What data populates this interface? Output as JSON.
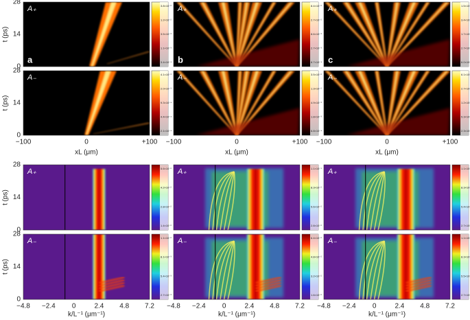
{
  "top": {
    "y_label": "t (ps)",
    "y_ticks": [
      "28",
      "14",
      "0"
    ],
    "x_label": "xL (μm)",
    "x_ticks": [
      "−100",
      "0",
      "+100"
    ],
    "panels": [
      {
        "letter": "a",
        "rows": [
          {
            "label": "A₊",
            "colorbar": [
              "3.8×10⁻²",
              "1.2×10⁻²",
              "3.5×10⁻³",
              "1.1×10⁻³",
              "3.4×10⁻⁴"
            ]
          },
          {
            "label": "A₋",
            "colorbar": [
              "4.1×10⁻³",
              "2.0×10⁻³",
              "9.3×10⁻⁴",
              "4.4×10⁻⁴",
              "2.1×10⁻⁴"
            ]
          }
        ]
      },
      {
        "letter": "b",
        "rows": [
          {
            "label": "A₊",
            "colorbar": [
              "8.4×10⁻²",
              "2.7×10⁻²",
              "8.6×10⁻³",
              "2.7×10⁻³",
              "8.7×10⁻⁴"
            ]
          },
          {
            "label": "A₋",
            "colorbar": [
              "3.5×10⁻²",
              "1.3×10⁻²",
              "4.9×10⁻³",
              "1.8×10⁻³",
              "6.8×10⁻⁴"
            ]
          }
        ]
      },
      {
        "letter": "c",
        "rows": [
          {
            "label": "A₊",
            "colorbar": [
              "1.5×10⁻¹",
              "3.4×10⁻²",
              "1.7×10⁻²",
              "2.7×10⁻³",
              "6.0×10⁻⁴"
            ]
          },
          {
            "label": "A₋",
            "colorbar": [
              "6.1×10⁻²",
              "2.7×10⁻²",
              "1.2×10⁻²",
              "5.3×10⁻³",
              "2.3×10⁻³"
            ]
          }
        ]
      }
    ]
  },
  "bottom": {
    "y_label": "t (ps)",
    "y_ticks": [
      "28",
      "14",
      "0"
    ],
    "x_label": "k/L⁻¹ (μm⁻¹)",
    "x_ticks": [
      "−4.8",
      "−2.4",
      "0",
      "2.4",
      "4.8",
      "7.2"
    ],
    "panels": [
      {
        "rows": [
          {
            "label": "A₊",
            "colorbar": [
              "5.6×10⁻²",
              "4.2×10⁻²",
              "2.8×10⁻²",
              "1.4×10⁻²"
            ]
          },
          {
            "label": "A₋",
            "colorbar": [
              "1.1×10⁻²",
              "8.1×10⁻³",
              "5.4×10⁻³",
              "2.7×10⁻³"
            ]
          }
        ]
      },
      {
        "rows": [
          {
            "label": "A₊",
            "colorbar": [
              "1.1×10⁻¹",
              "8.3×10⁻²",
              "5.6×10⁻²",
              "2.8×10⁻²"
            ]
          },
          {
            "label": "A₋",
            "colorbar": [
              "6.4×10⁻²",
              "4.8×10⁻²",
              "3.2×10⁻²",
              "1.6×10⁻²"
            ]
          }
        ]
      },
      {
        "rows": [
          {
            "label": "A₊",
            "colorbar": [
              "1.1×10⁻¹",
              "8.3×10⁻²",
              "5.4×10⁻²",
              "2.7×10⁻²"
            ]
          },
          {
            "label": "A₋",
            "colorbar": [
              "1.1×10⁻¹",
              "8.3×10⁻²",
              "5.5×10⁻²",
              "2.7×10⁻²"
            ]
          }
        ]
      }
    ]
  }
}
